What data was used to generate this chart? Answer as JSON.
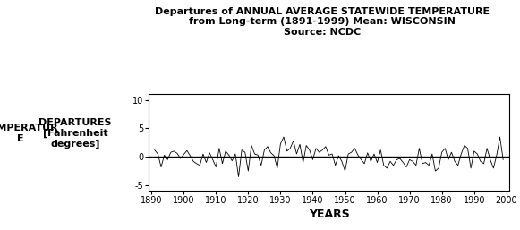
{
  "title_line1": "Departures of ANNUAL AVERAGE STATEWIDE TEMPERATURE",
  "title_line2": "from Long-term (1891-1999) Mean: WISCONSIN",
  "title_line3": "Source: NCDC",
  "ylabel_col1": "TEMPERATUR\nE",
  "ylabel_col2": "DEPARTURES\n[Fahrenheit\ndegrees]",
  "xlabel": "YEARS",
  "ylim": [
    -6,
    11
  ],
  "yticks": [
    -5,
    0,
    5,
    10
  ],
  "xticks": [
    1890,
    1900,
    1910,
    1920,
    1930,
    1940,
    1950,
    1960,
    1970,
    1980,
    1990,
    2000
  ],
  "bg_color": "#ffffff",
  "line_color": "#000000",
  "years": [
    1891,
    1892,
    1893,
    1894,
    1895,
    1896,
    1897,
    1898,
    1899,
    1900,
    1901,
    1902,
    1903,
    1904,
    1905,
    1906,
    1907,
    1908,
    1909,
    1910,
    1911,
    1912,
    1913,
    1914,
    1915,
    1916,
    1917,
    1918,
    1919,
    1920,
    1921,
    1922,
    1923,
    1924,
    1925,
    1926,
    1927,
    1928,
    1929,
    1930,
    1931,
    1932,
    1933,
    1934,
    1935,
    1936,
    1937,
    1938,
    1939,
    1940,
    1941,
    1942,
    1943,
    1944,
    1945,
    1946,
    1947,
    1948,
    1949,
    1950,
    1951,
    1952,
    1953,
    1954,
    1955,
    1956,
    1957,
    1958,
    1959,
    1960,
    1961,
    1962,
    1963,
    1964,
    1965,
    1966,
    1967,
    1968,
    1969,
    1970,
    1971,
    1972,
    1973,
    1974,
    1975,
    1976,
    1977,
    1978,
    1979,
    1980,
    1981,
    1982,
    1983,
    1984,
    1985,
    1986,
    1987,
    1988,
    1989,
    1990,
    1991,
    1992,
    1993,
    1994,
    1995,
    1996,
    1997,
    1998,
    1999
  ],
  "values": [
    1.2,
    0.5,
    -1.8,
    0.3,
    -0.5,
    0.8,
    1.0,
    0.6,
    -0.3,
    0.4,
    1.1,
    0.2,
    -0.8,
    -1.2,
    -1.5,
    0.5,
    -1.0,
    0.7,
    -0.5,
    -1.8,
    1.5,
    -1.2,
    1.0,
    0.3,
    -0.7,
    0.5,
    -3.5,
    1.2,
    0.8,
    -2.5,
    2.0,
    0.5,
    0.3,
    -1.5,
    1.2,
    1.8,
    0.7,
    0.2,
    -2.0,
    2.3,
    3.5,
    1.0,
    1.5,
    2.8,
    0.5,
    2.2,
    -1.0,
    2.0,
    1.2,
    -0.5,
    1.5,
    0.8,
    1.2,
    1.8,
    0.3,
    0.5,
    -1.5,
    0.2,
    -0.8,
    -2.5,
    0.5,
    0.8,
    1.5,
    0.3,
    -0.5,
    -1.2,
    0.7,
    -0.8,
    0.5,
    -1.0,
    1.2,
    -1.5,
    -2.0,
    -0.8,
    -1.5,
    -0.5,
    -0.3,
    -1.0,
    -1.8,
    -0.5,
    -0.8,
    -1.5,
    1.5,
    -1.2,
    -1.0,
    -1.5,
    0.5,
    -2.5,
    -2.0,
    0.8,
    1.5,
    -0.5,
    0.8,
    -0.8,
    -1.5,
    0.5,
    2.0,
    1.5,
    -2.0,
    1.0,
    0.5,
    -0.8,
    -1.2,
    1.5,
    -0.5,
    -2.0,
    0.3,
    3.5,
    -0.5
  ],
  "title_fontsize": 8,
  "tick_fontsize": 7,
  "xlabel_fontsize": 9,
  "ylabel_fontsize": 8
}
